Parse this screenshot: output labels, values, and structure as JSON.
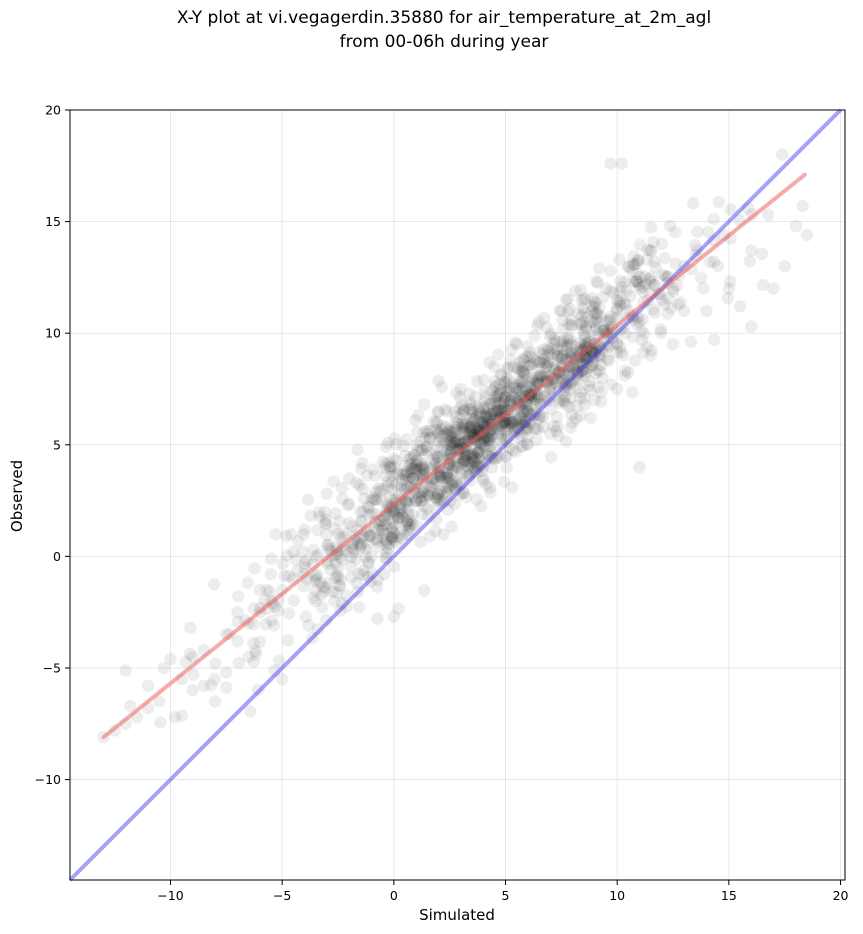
{
  "chart_data": {
    "type": "scatter",
    "title_lines": [
      "X-Y plot at vi.vegagerdin.35880 for air_temperature_at_2m_agl",
      "from 00-06h during year"
    ],
    "xlabel": "Simulated",
    "ylabel": "Observed",
    "xlim": [
      -14.5,
      20.2
    ],
    "ylim": [
      -14.5,
      20
    ],
    "xticks": [
      -10,
      -5,
      0,
      5,
      10,
      15,
      20
    ],
    "yticks": [
      -10,
      -5,
      0,
      5,
      10,
      15,
      20
    ],
    "grid": true,
    "colors": {
      "points": "#000000",
      "identity_line": "#3333ee",
      "fit_line": "#ee5555"
    },
    "identity_line": {
      "x": [
        -14.5,
        20
      ],
      "y": [
        -14.5,
        20
      ]
    },
    "fit_line": {
      "x": [
        -13,
        18.4
      ],
      "y": [
        -8.1,
        17.1
      ]
    },
    "cloud": {
      "points": [
        [
          -13,
          -8.1
        ],
        [
          -12.5,
          -7.8
        ],
        [
          -12,
          -7.5
        ],
        [
          -11.8,
          -6.7
        ],
        [
          -11.5,
          -7.2
        ],
        [
          -11,
          -6.8
        ],
        [
          -11,
          -5.8
        ],
        [
          -10.5,
          -6.5
        ],
        [
          -10.3,
          -5
        ],
        [
          -10,
          -4.6
        ],
        [
          -9.8,
          -7.2
        ],
        [
          -9.5,
          -5.5
        ],
        [
          -9,
          -6
        ],
        [
          -9,
          -4.5
        ],
        [
          -8.5,
          -4.2
        ],
        [
          -8.5,
          -5.8
        ],
        [
          -8,
          -4.8
        ],
        [
          -8,
          -6.5
        ],
        [
          -7.5,
          -3.5
        ],
        [
          -7.5,
          -5.2
        ],
        [
          -7,
          -3.8
        ],
        [
          -7,
          -2.5
        ],
        [
          -6.5,
          -3
        ],
        [
          -6.5,
          -4.5
        ],
        [
          -6,
          -2.5
        ],
        [
          -6,
          -1.5
        ],
        [
          -5.5,
          -2
        ],
        [
          -5.5,
          -0.8
        ],
        [
          -5.3,
          1
        ],
        [
          -5,
          -1.5
        ],
        [
          -5,
          -5.5
        ],
        [
          -4.5,
          -1
        ],
        [
          -4.5,
          0.2
        ],
        [
          -4,
          -0.8
        ],
        [
          -4,
          1.2
        ],
        [
          -3.5,
          0
        ],
        [
          -3.5,
          -2
        ],
        [
          -3,
          0.5
        ],
        [
          -3,
          2.8
        ],
        [
          -2.5,
          1
        ],
        [
          -2.5,
          -0.5
        ],
        [
          -2,
          1.5
        ],
        [
          -2,
          3.5
        ],
        [
          -1.5,
          2
        ],
        [
          -1.5,
          0.5
        ],
        [
          -1,
          2.5
        ],
        [
          -1,
          0
        ],
        [
          -0.5,
          3
        ],
        [
          -0.5,
          1.2
        ],
        [
          0,
          2
        ],
        [
          0,
          4
        ],
        [
          0,
          -2.7
        ],
        [
          0.5,
          4.5
        ],
        [
          0.5,
          3
        ],
        [
          1,
          5
        ],
        [
          1,
          2.5
        ],
        [
          1.5,
          5.5
        ],
        [
          1.5,
          3.5
        ],
        [
          2,
          4
        ],
        [
          2,
          6.5
        ],
        [
          2.5,
          5
        ],
        [
          2.5,
          3
        ],
        [
          3,
          5.5
        ],
        [
          3,
          7.5
        ],
        [
          3.5,
          4.5
        ],
        [
          3.5,
          6.5
        ],
        [
          4,
          5.5
        ],
        [
          4,
          3.5
        ],
        [
          4.5,
          6.5
        ],
        [
          4.5,
          8.5
        ],
        [
          5,
          6
        ],
        [
          5,
          4.5
        ],
        [
          5.5,
          7
        ],
        [
          5.5,
          9.5
        ],
        [
          6,
          6.5
        ],
        [
          6,
          5
        ],
        [
          6.5,
          8
        ],
        [
          6.5,
          10.5
        ],
        [
          7,
          7.5
        ],
        [
          7,
          5.5
        ],
        [
          7.5,
          8.5
        ],
        [
          7.5,
          11
        ],
        [
          8,
          8.5
        ],
        [
          8,
          6
        ],
        [
          8.5,
          9
        ],
        [
          8.5,
          11.5
        ],
        [
          9,
          9.5
        ],
        [
          9,
          7
        ],
        [
          9.5,
          10
        ],
        [
          9.5,
          12
        ],
        [
          10,
          9.5
        ],
        [
          10,
          7.5
        ],
        [
          10.5,
          11
        ],
        [
          10.5,
          13
        ],
        [
          11,
          10.5
        ],
        [
          11,
          4
        ],
        [
          11.5,
          12.5
        ],
        [
          11.5,
          9
        ],
        [
          12,
          11.5
        ],
        [
          12,
          14
        ],
        [
          12.5,
          12
        ],
        [
          12.5,
          9.5
        ],
        [
          13,
          13
        ],
        [
          13,
          11
        ],
        [
          13.5,
          13.5
        ],
        [
          14,
          11
        ],
        [
          14.5,
          13
        ],
        [
          15,
          12
        ],
        [
          16,
          13.7
        ],
        [
          16,
          10.3
        ],
        [
          17,
          12
        ],
        [
          17.5,
          13
        ],
        [
          18,
          14.8
        ],
        [
          18.3,
          15.7
        ],
        [
          18.5,
          14.4
        ],
        [
          9.7,
          17.6
        ],
        [
          10.2,
          17.6
        ],
        [
          15.5,
          11.2
        ],
        [
          2.5,
          3.5
        ],
        [
          6.7,
          5.8
        ]
      ]
    }
  }
}
